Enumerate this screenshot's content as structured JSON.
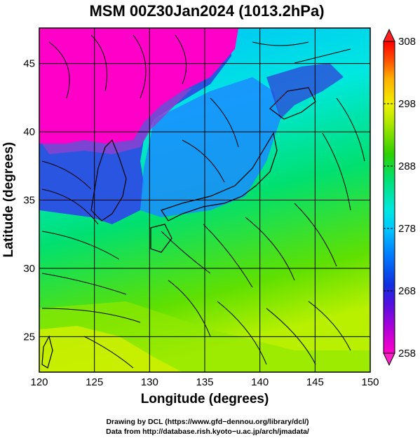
{
  "title": "MSM 00Z30Jan2024 (1013.2hPa)",
  "chart_data": {
    "type": "heatmap",
    "title": "MSM 00Z30Jan2024 (1013.2hPa)",
    "xlabel": "Longitude (degrees)",
    "ylabel": "Latitude  (degrees)",
    "xlim": [
      120,
      150
    ],
    "ylim": [
      22.4,
      47.6
    ],
    "x_ticks": [
      120,
      125,
      130,
      135,
      140,
      145,
      150
    ],
    "y_ticks": [
      25,
      30,
      35,
      40,
      45
    ],
    "x_tick_labels": [
      "120",
      "125",
      "130",
      "135",
      "140",
      "145",
      "150"
    ],
    "y_tick_labels": [
      "25",
      "30",
      "35",
      "40",
      "45"
    ],
    "grid": true,
    "overlay": "wind streamlines with arrows",
    "colorbar": {
      "min": 258,
      "max": 308,
      "ticks": [
        258,
        268,
        278,
        288,
        298,
        308
      ],
      "tick_labels": [
        "258",
        "268",
        "278",
        "288",
        "298",
        "308"
      ],
      "colors": [
        "#ff00c8",
        "#8800dd",
        "#1030e0",
        "#00a0ff",
        "#00e8e0",
        "#00e070",
        "#40d000",
        "#c0f000",
        "#f0f000",
        "#ffb000",
        "#ff5000",
        "#ff0000"
      ]
    }
  },
  "credits": {
    "line1": "Drawing by DCL (https://www.gfd−dennou.org/library/dcl/)",
    "line2": "Data from http://database.rish.kyoto−u.ac.jp/arch/jmadata/"
  }
}
